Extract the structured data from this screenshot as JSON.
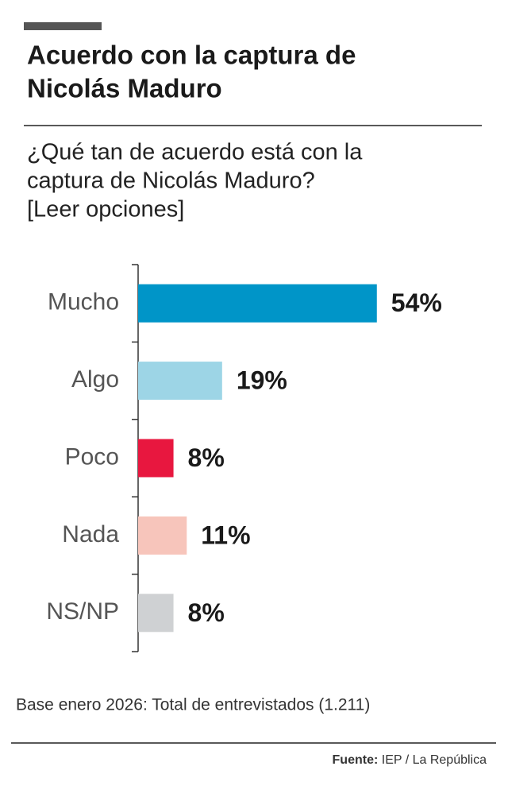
{
  "chart_data": {
    "type": "bar",
    "title": [
      "Acuerdo con la captura de",
      "Nicolás Maduro"
    ],
    "subtitle": [
      "¿Qué tan de acuerdo está con la",
      "captura de Nicolás Maduro?",
      "[Leer opciones]"
    ],
    "categories": [
      "Mucho",
      "Algo",
      "Poco",
      "Nada",
      "NS/NP"
    ],
    "values": [
      54,
      19,
      8,
      11,
      8
    ],
    "value_labels": [
      "54%",
      "19%",
      "8%",
      "11%",
      "8%"
    ],
    "colors": [
      "#0095c8",
      "#9dd5e6",
      "#e8173f",
      "#f7c5bb",
      "#cfd1d3"
    ],
    "note": "Base enero 2026: Total de entrevistados (1.211)",
    "source_label": "Fuente:",
    "source": "IEP / La República"
  }
}
